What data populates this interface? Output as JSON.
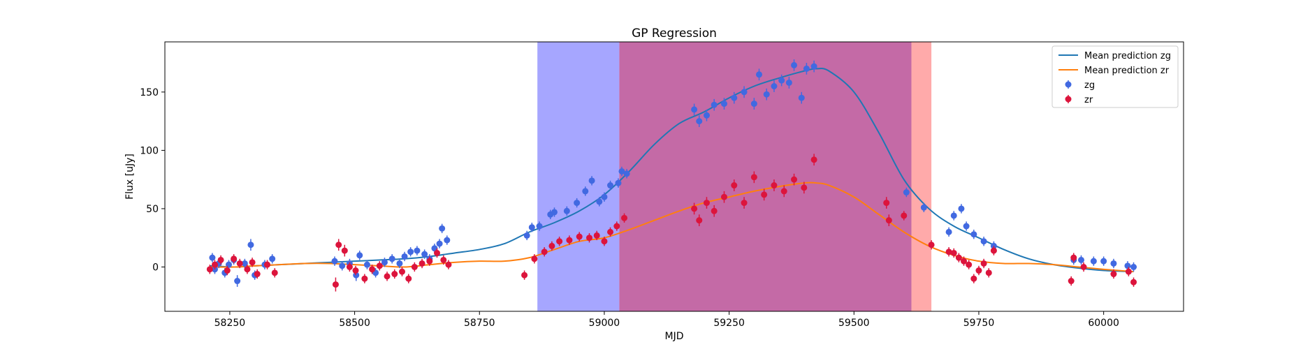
{
  "chart_data": {
    "type": "scatter",
    "title": "GP Regression",
    "xlabel": "MJD",
    "ylabel": "Flux [uJy]",
    "xlim": [
      58120,
      60160
    ],
    "ylim": [
      -38,
      193
    ],
    "xticks": [
      58250,
      58500,
      58750,
      59000,
      59250,
      59500,
      59750,
      60000
    ],
    "yticks": [
      0,
      50,
      100,
      150
    ],
    "grid": false,
    "legend_position": "top-right",
    "spans": [
      {
        "x0": 58866,
        "x1": 59030,
        "color": "#a6a6ff"
      },
      {
        "x0": 59030,
        "x1": 59615,
        "color": "#c46aa6"
      },
      {
        "x0": 59615,
        "x1": 59655,
        "color": "#ffaaaa"
      }
    ],
    "series": [
      {
        "name": "Mean prediction zg",
        "kind": "line",
        "color": "#1f77b4",
        "x": [
          58210,
          58260,
          58300,
          58350,
          58400,
          58450,
          58500,
          58550,
          58600,
          58650,
          58700,
          58750,
          58800,
          58850,
          58900,
          58950,
          59000,
          59050,
          59100,
          59150,
          59200,
          59250,
          59300,
          59350,
          59400,
          59425,
          59450,
          59500,
          59550,
          59600,
          59650,
          59700,
          59750,
          59800,
          59850,
          59900,
          59950,
          60000,
          60060
        ],
        "y": [
          1,
          0,
          1,
          2,
          3,
          4,
          5,
          6,
          7,
          9,
          12,
          15,
          20,
          30,
          38,
          48,
          62,
          82,
          105,
          123,
          133,
          145,
          155,
          162,
          168,
          170,
          168,
          150,
          115,
          75,
          50,
          35,
          25,
          15,
          7,
          2,
          -1,
          -3,
          -4
        ]
      },
      {
        "name": "Mean prediction zr",
        "kind": "line",
        "color": "#ff7f0e",
        "x": [
          58210,
          58260,
          58300,
          58350,
          58400,
          58450,
          58500,
          58550,
          58600,
          58650,
          58700,
          58750,
          58800,
          58850,
          58900,
          58950,
          59000,
          59050,
          59100,
          59150,
          59200,
          59250,
          59300,
          59350,
          59400,
          59425,
          59450,
          59500,
          59550,
          59600,
          59650,
          59700,
          59750,
          59800,
          59850,
          59900,
          59950,
          60000,
          60060
        ],
        "y": [
          0,
          0,
          1,
          2,
          3,
          3,
          2,
          1,
          0,
          2,
          4,
          5,
          5,
          8,
          15,
          22,
          25,
          32,
          40,
          48,
          55,
          60,
          65,
          69,
          72,
          72,
          70,
          60,
          45,
          30,
          18,
          10,
          5,
          3,
          3,
          2,
          0,
          -2,
          -4
        ]
      },
      {
        "name": "zg",
        "kind": "errorbar",
        "color": "#4169e1",
        "points": [
          [
            58215,
            8,
            4
          ],
          [
            58220,
            -2,
            4
          ],
          [
            58228,
            3,
            4
          ],
          [
            58240,
            -5,
            4
          ],
          [
            58248,
            2,
            4
          ],
          [
            58258,
            6,
            4
          ],
          [
            58265,
            -12,
            5
          ],
          [
            58280,
            3,
            4
          ],
          [
            58292,
            19,
            5
          ],
          [
            58300,
            -7,
            4
          ],
          [
            58320,
            2,
            4
          ],
          [
            58335,
            7,
            4
          ],
          [
            58460,
            5,
            4
          ],
          [
            58475,
            1,
            4
          ],
          [
            58490,
            3,
            4
          ],
          [
            58503,
            -7,
            5
          ],
          [
            58510,
            10,
            4
          ],
          [
            58525,
            2,
            4
          ],
          [
            58542,
            -5,
            4
          ],
          [
            58560,
            4,
            4
          ],
          [
            58575,
            7,
            4
          ],
          [
            58590,
            3,
            4
          ],
          [
            58600,
            9,
            4
          ],
          [
            58612,
            13,
            4
          ],
          [
            58625,
            14,
            4
          ],
          [
            58640,
            11,
            4
          ],
          [
            58650,
            7,
            4
          ],
          [
            58660,
            16,
            4
          ],
          [
            58670,
            20,
            4
          ],
          [
            58675,
            33,
            4
          ],
          [
            58685,
            23,
            4
          ],
          [
            58845,
            27,
            4
          ],
          [
            58855,
            34,
            4
          ],
          [
            58870,
            35,
            4
          ],
          [
            58892,
            45,
            4
          ],
          [
            58900,
            47,
            4
          ],
          [
            58925,
            48,
            4
          ],
          [
            58945,
            55,
            4
          ],
          [
            58962,
            65,
            4
          ],
          [
            58975,
            74,
            4
          ],
          [
            58990,
            56,
            4
          ],
          [
            59000,
            60,
            4
          ],
          [
            59012,
            70,
            4
          ],
          [
            59028,
            72,
            4
          ],
          [
            59035,
            82,
            4
          ],
          [
            59045,
            80,
            4
          ],
          [
            59180,
            135,
            5
          ],
          [
            59190,
            125,
            5
          ],
          [
            59205,
            130,
            5
          ],
          [
            59220,
            139,
            5
          ],
          [
            59240,
            140,
            5
          ],
          [
            59260,
            145,
            5
          ],
          [
            59280,
            150,
            5
          ],
          [
            59300,
            140,
            5
          ],
          [
            59310,
            165,
            5
          ],
          [
            59325,
            148,
            5
          ],
          [
            59340,
            155,
            5
          ],
          [
            59355,
            160,
            5
          ],
          [
            59370,
            158,
            5
          ],
          [
            59380,
            173,
            5
          ],
          [
            59395,
            145,
            5
          ],
          [
            59405,
            170,
            5
          ],
          [
            59420,
            172,
            5
          ],
          [
            59605,
            64,
            4
          ],
          [
            59640,
            51,
            4
          ],
          [
            59690,
            30,
            4
          ],
          [
            59700,
            44,
            4
          ],
          [
            59715,
            50,
            4
          ],
          [
            59725,
            35,
            4
          ],
          [
            59740,
            28,
            4
          ],
          [
            59760,
            22,
            4
          ],
          [
            59780,
            18,
            4
          ],
          [
            59940,
            6,
            4
          ],
          [
            59955,
            6,
            4
          ],
          [
            59980,
            5,
            4
          ],
          [
            60000,
            5,
            4
          ],
          [
            60020,
            3,
            4
          ],
          [
            60048,
            1,
            4
          ],
          [
            60060,
            0,
            4
          ]
        ]
      },
      {
        "name": "zr",
        "kind": "errorbar",
        "color": "#dc143c",
        "points": [
          [
            58210,
            -2,
            4
          ],
          [
            58220,
            2,
            4
          ],
          [
            58232,
            6,
            4
          ],
          [
            58245,
            -3,
            4
          ],
          [
            58258,
            7,
            4
          ],
          [
            58270,
            3,
            4
          ],
          [
            58285,
            -2,
            4
          ],
          [
            58295,
            4,
            4
          ],
          [
            58305,
            -6,
            4
          ],
          [
            58325,
            2,
            4
          ],
          [
            58340,
            -5,
            4
          ],
          [
            58462,
            -15,
            6
          ],
          [
            58468,
            19,
            5
          ],
          [
            58480,
            14,
            5
          ],
          [
            58490,
            0,
            4
          ],
          [
            58502,
            -3,
            4
          ],
          [
            58520,
            -10,
            4
          ],
          [
            58535,
            -2,
            4
          ],
          [
            58550,
            1,
            4
          ],
          [
            58565,
            -8,
            4
          ],
          [
            58580,
            -6,
            4
          ],
          [
            58595,
            -4,
            4
          ],
          [
            58608,
            -10,
            4
          ],
          [
            58620,
            0,
            4
          ],
          [
            58635,
            3,
            4
          ],
          [
            58650,
            5,
            4
          ],
          [
            58665,
            12,
            4
          ],
          [
            58678,
            6,
            4
          ],
          [
            58688,
            2,
            4
          ],
          [
            58840,
            -7,
            4
          ],
          [
            58860,
            7,
            4
          ],
          [
            58880,
            13,
            4
          ],
          [
            58895,
            18,
            4
          ],
          [
            58910,
            22,
            4
          ],
          [
            58930,
            23,
            4
          ],
          [
            58950,
            26,
            4
          ],
          [
            58970,
            25,
            4
          ],
          [
            58985,
            27,
            4
          ],
          [
            59000,
            22,
            4
          ],
          [
            59012,
            30,
            4
          ],
          [
            59025,
            35,
            4
          ],
          [
            59040,
            42,
            4
          ],
          [
            59180,
            50,
            5
          ],
          [
            59190,
            40,
            5
          ],
          [
            59205,
            55,
            5
          ],
          [
            59220,
            48,
            5
          ],
          [
            59240,
            60,
            5
          ],
          [
            59260,
            70,
            5
          ],
          [
            59280,
            55,
            5
          ],
          [
            59300,
            77,
            5
          ],
          [
            59320,
            62,
            5
          ],
          [
            59340,
            70,
            5
          ],
          [
            59360,
            65,
            5
          ],
          [
            59380,
            75,
            5
          ],
          [
            59400,
            68,
            5
          ],
          [
            59420,
            92,
            5
          ],
          [
            59565,
            55,
            5
          ],
          [
            59570,
            40,
            5
          ],
          [
            59600,
            44,
            4
          ],
          [
            59655,
            19,
            4
          ],
          [
            59690,
            13,
            4
          ],
          [
            59700,
            12,
            4
          ],
          [
            59710,
            8,
            4
          ],
          [
            59720,
            5,
            4
          ],
          [
            59730,
            2,
            4
          ],
          [
            59740,
            -10,
            4
          ],
          [
            59750,
            -3,
            4
          ],
          [
            59760,
            3,
            4
          ],
          [
            59770,
            -5,
            4
          ],
          [
            59780,
            14,
            4
          ],
          [
            59935,
            -12,
            4
          ],
          [
            59940,
            8,
            4
          ],
          [
            59960,
            0,
            4
          ],
          [
            60020,
            -6,
            4
          ],
          [
            60050,
            -4,
            4
          ],
          [
            60060,
            -13,
            4
          ]
        ]
      }
    ],
    "legend": [
      {
        "label": "Mean prediction zg",
        "kind": "line",
        "color": "#1f77b4"
      },
      {
        "label": "Mean prediction zr",
        "kind": "line",
        "color": "#ff7f0e"
      },
      {
        "label": "zg",
        "kind": "errorbar",
        "color": "#4169e1"
      },
      {
        "label": "zr",
        "kind": "errorbar",
        "color": "#dc143c"
      }
    ]
  }
}
